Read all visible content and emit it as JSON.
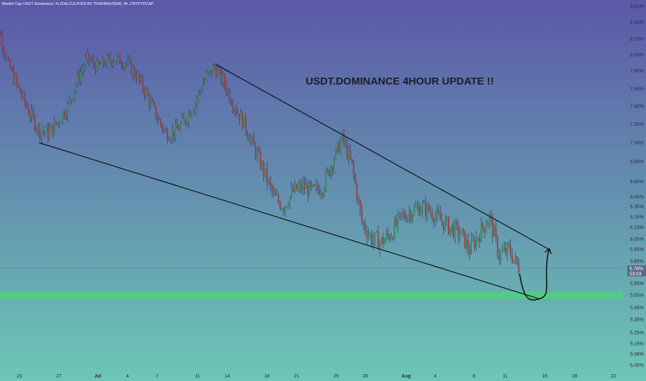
{
  "header": {
    "symbol_line": "Market Cap USDT Dominance, % (CALCULATED BY TRADINGVIEW), 4h, CRYPTOCAP"
  },
  "colors": {
    "bg_top": "#5b58a8",
    "bg_bottom": "#6dc7b6",
    "candle_up": "#2f8f52",
    "candle_down": "#9c3a3a",
    "wick": "#2a2a3a",
    "trendline": "#111111",
    "support_zone": "#4fd07c",
    "last_price_bg": "#5c6a86"
  },
  "annotation": {
    "text": "USDT.DOMINANCE 4HOUR UPDATE !!"
  },
  "price_tag": {
    "value": "5.78%",
    "countdown": "53:03"
  },
  "chart_data": {
    "type": "candlestick",
    "title": "USDT.DOMINANCE 4HOUR UPDATE !!",
    "ylabel": "%",
    "ylim": [
      4.95,
      8.62
    ],
    "y_ticks": [
      "8.60%",
      "8.40%",
      "8.20%",
      "8.00%",
      "7.80%",
      "7.60%",
      "7.40%",
      "7.20%",
      "7.00%",
      "6.80%",
      "6.60%",
      "6.45%",
      "6.35%",
      "6.25%",
      "6.15%",
      "6.05%",
      "5.95%",
      "5.85%",
      "5.75%",
      "5.65%",
      "5.55%",
      "5.45%",
      "5.35%",
      "5.25%",
      "5.15%",
      "5.08%",
      "5.00%"
    ],
    "x_ticks": [
      "23",
      "27",
      "Jul",
      "4",
      "7",
      "11",
      "14",
      "18",
      "21",
      "25",
      "28",
      "Aug",
      "4",
      "8",
      "11",
      "15",
      "18",
      "22"
    ],
    "last_price": 5.78,
    "support_zone": [
      5.52,
      5.58
    ],
    "price_path": [
      {
        "date": "Jun 20",
        "price": 8.12
      },
      {
        "date": "Jun 21",
        "price": 8.3
      },
      {
        "date": "Jun 22",
        "price": 7.85
      },
      {
        "date": "Jun 23",
        "price": 7.6
      },
      {
        "date": "Jun 24",
        "price": 7.35
      },
      {
        "date": "Jun 25",
        "price": 7.15
      },
      {
        "date": "Jun 26",
        "price": 7.1
      },
      {
        "date": "Jun 27",
        "price": 7.22
      },
      {
        "date": "Jun 28",
        "price": 7.4
      },
      {
        "date": "Jun 29",
        "price": 7.7
      },
      {
        "date": "Jun 30",
        "price": 7.95
      },
      {
        "date": "Jul 1",
        "price": 7.85
      },
      {
        "date": "Jul 2",
        "price": 7.92
      },
      {
        "date": "Jul 3",
        "price": 7.95
      },
      {
        "date": "Jul 4",
        "price": 7.9
      },
      {
        "date": "Jul 5",
        "price": 7.75
      },
      {
        "date": "Jul 6",
        "price": 7.55
      },
      {
        "date": "Jul 7",
        "price": 7.3
      },
      {
        "date": "Jul 8",
        "price": 7.1
      },
      {
        "date": "Jul 9",
        "price": 7.12
      },
      {
        "date": "Jul 10",
        "price": 7.25
      },
      {
        "date": "Jul 11",
        "price": 7.45
      },
      {
        "date": "Jul 12",
        "price": 7.7
      },
      {
        "date": "Jul 13",
        "price": 7.85
      },
      {
        "date": "Jul 14",
        "price": 7.65
      },
      {
        "date": "Jul 15",
        "price": 7.4
      },
      {
        "date": "Jul 16",
        "price": 7.2
      },
      {
        "date": "Jul 17",
        "price": 6.95
      },
      {
        "date": "Jul 18",
        "price": 6.7
      },
      {
        "date": "Jul 19",
        "price": 6.45
      },
      {
        "date": "Jul 20",
        "price": 6.35
      },
      {
        "date": "Jul 21",
        "price": 6.5
      },
      {
        "date": "Jul 22",
        "price": 6.55
      },
      {
        "date": "Jul 23",
        "price": 6.5
      },
      {
        "date": "Jul 24",
        "price": 6.55
      },
      {
        "date": "Jul 25",
        "price": 6.8
      },
      {
        "date": "Jul 26",
        "price": 7.05
      },
      {
        "date": "Jul 27",
        "price": 6.75
      },
      {
        "date": "Jul 28",
        "price": 6.2
      },
      {
        "date": "Jul 29",
        "price": 6.05
      },
      {
        "date": "Jul 30",
        "price": 6.02
      },
      {
        "date": "Jul 31",
        "price": 6.1
      },
      {
        "date": "Aug 1",
        "price": 6.25
      },
      {
        "date": "Aug 2",
        "price": 6.3
      },
      {
        "date": "Aug 3",
        "price": 6.35
      },
      {
        "date": "Aug 4",
        "price": 6.3
      },
      {
        "date": "Aug 5",
        "price": 6.22
      },
      {
        "date": "Aug 6",
        "price": 6.15
      },
      {
        "date": "Aug 7",
        "price": 6.1
      },
      {
        "date": "Aug 8",
        "price": 5.95
      },
      {
        "date": "Aug 9",
        "price": 6.1
      },
      {
        "date": "Aug 10",
        "price": 6.25
      },
      {
        "date": "Aug 11",
        "price": 5.9
      },
      {
        "date": "Aug 12",
        "price": 5.95
      },
      {
        "date": "Aug 13",
        "price": 5.78
      }
    ],
    "trendlines": [
      {
        "name": "upper",
        "from": {
          "date": "Jul 13",
          "price": 7.88
        },
        "to": {
          "date": "Aug 16",
          "price": 5.95
        }
      },
      {
        "name": "lower",
        "from": {
          "date": "Jun 25",
          "price": 7.0
        },
        "to": {
          "date": "Aug 15",
          "price": 5.52
        }
      }
    ],
    "projection": [
      {
        "date": "Aug 13",
        "price": 5.72
      },
      {
        "date": "Aug 15",
        "price": 5.52
      },
      {
        "date": "Aug 16",
        "price": 5.95
      }
    ],
    "grid": false,
    "legend": "none"
  }
}
